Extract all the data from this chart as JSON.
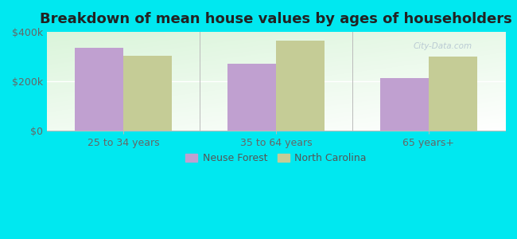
{
  "title": "Breakdown of mean house values by ages of householders",
  "categories": [
    "25 to 34 years",
    "35 to 64 years",
    "65 years+"
  ],
  "neuse_forest": [
    335000,
    270000,
    215000
  ],
  "north_carolina": [
    305000,
    365000,
    300000
  ],
  "bar_color_neuse": "#c0a0d0",
  "bar_color_nc": "#c5cc96",
  "background_color": "#00e8f0",
  "ylim": [
    0,
    400000
  ],
  "yticks": [
    0,
    200000,
    400000
  ],
  "ytick_labels": [
    "$0",
    "$200k",
    "$400k"
  ],
  "legend_neuse": "Neuse Forest",
  "legend_nc": "North Carolina",
  "title_fontsize": 13,
  "tick_fontsize": 9,
  "legend_fontsize": 9,
  "bar_width": 0.32
}
